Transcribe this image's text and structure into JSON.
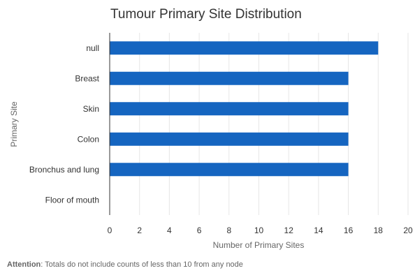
{
  "chart_data": {
    "type": "bar",
    "orientation": "horizontal",
    "title": "Tumour Primary Site Distribution",
    "xlabel": "Number of Primary Sites",
    "ylabel": "Primary Site",
    "categories": [
      "null",
      "Breast",
      "Skin",
      "Colon",
      "Bronchus and lung",
      "Floor of mouth"
    ],
    "values": [
      18,
      16,
      16,
      16,
      16,
      0
    ],
    "xlim": [
      0,
      20
    ],
    "xticks": [
      0,
      2,
      4,
      6,
      8,
      10,
      12,
      14,
      16,
      18,
      20
    ],
    "grid": true,
    "bar_color": "#1565c0"
  },
  "footnote": {
    "label": "Attention",
    "text": ": Totals do not include counts of less than 10 from any node"
  }
}
